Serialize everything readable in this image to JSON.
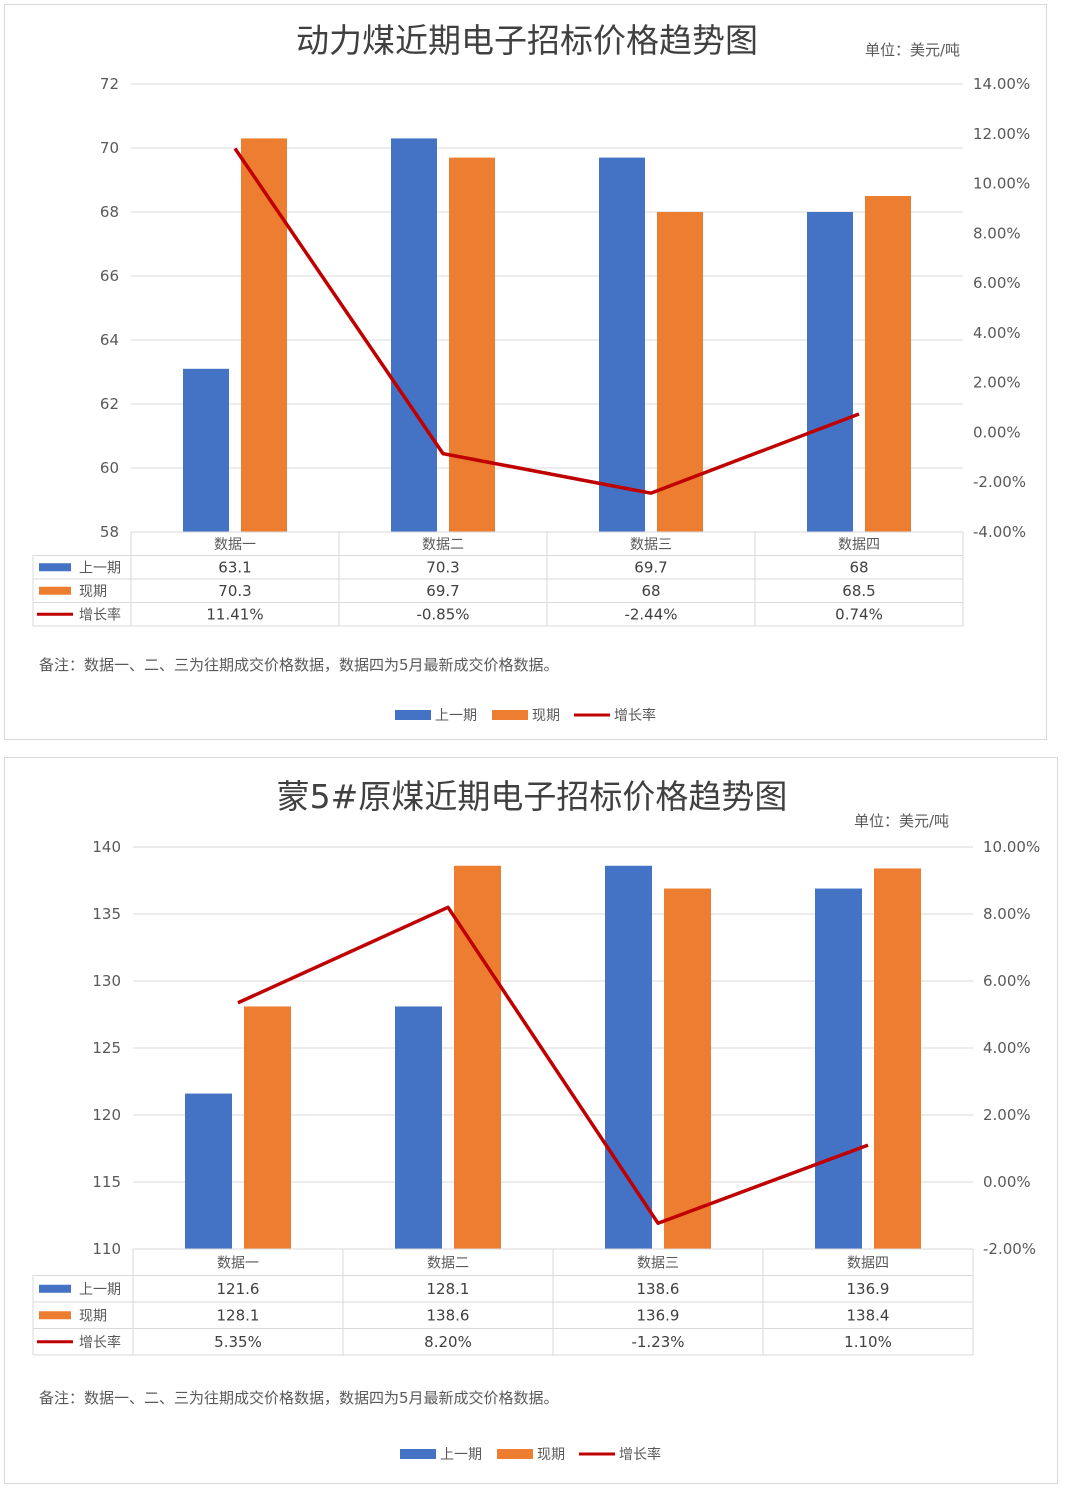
{
  "chart_data": [
    {
      "type": "bar",
      "title": "动力煤近期电子招标价格趋势图",
      "unit": "单位：美元/吨",
      "categories": [
        "数据一",
        "数据二",
        "数据三",
        "数据四"
      ],
      "ylim": [
        58,
        72
      ],
      "yticks": [
        72,
        70,
        68,
        66,
        64,
        62,
        60,
        58
      ],
      "y2lim": [
        -4,
        14
      ],
      "y2ticks": [
        "14.00%",
        "12.00%",
        "10.00%",
        "8.00%",
        "6.00%",
        "4.00%",
        "2.00%",
        "0.00%",
        "-2.00%",
        "-4.00%"
      ],
      "series": [
        {
          "name": "上一期",
          "kind": "bar",
          "color": "#4472C4",
          "values": [
            63.1,
            70.3,
            69.7,
            68
          ],
          "labels": [
            "63.1",
            "70.3",
            "69.7",
            "68"
          ]
        },
        {
          "name": "现期",
          "kind": "bar",
          "color": "#ED7D31",
          "values": [
            70.3,
            69.7,
            68,
            68.5
          ],
          "labels": [
            "70.3",
            "69.7",
            "68",
            "68.5"
          ]
        },
        {
          "name": "增长率",
          "kind": "line",
          "color": "#C00000",
          "values": [
            11.41,
            -0.85,
            -2.44,
            0.74
          ],
          "labels": [
            "11.41%",
            "-0.85%",
            "-2.44%",
            "0.74%"
          ]
        }
      ],
      "note": "备注：数据一、二、三为往期成交价格数据，数据四为5月最新成交价格数据。",
      "grid": true,
      "legend": "bottom"
    },
    {
      "type": "bar",
      "title": "蒙5#原煤近期电子招标价格趋势图",
      "unit": "单位：美元/吨",
      "categories": [
        "数据一",
        "数据二",
        "数据三",
        "数据四"
      ],
      "ylim": [
        110,
        140
      ],
      "yticks": [
        140,
        135,
        130,
        125,
        120,
        115,
        110
      ],
      "y2lim": [
        -2,
        10
      ],
      "y2ticks": [
        "10.00%",
        "8.00%",
        "6.00%",
        "4.00%",
        "2.00%",
        "0.00%",
        "-2.00%"
      ],
      "series": [
        {
          "name": "上一期",
          "kind": "bar",
          "color": "#4472C4",
          "values": [
            121.6,
            128.1,
            138.6,
            136.9
          ],
          "labels": [
            "121.6",
            "128.1",
            "138.6",
            "136.9"
          ]
        },
        {
          "name": "现期",
          "kind": "bar",
          "color": "#ED7D31",
          "values": [
            128.1,
            138.6,
            136.9,
            138.4
          ],
          "labels": [
            "128.1",
            "138.6",
            "136.9",
            "138.4"
          ]
        },
        {
          "name": "增长率",
          "kind": "line",
          "color": "#C00000",
          "values": [
            5.35,
            8.2,
            -1.23,
            1.1
          ],
          "labels": [
            "5.35%",
            "8.20%",
            "-1.23%",
            "1.10%"
          ]
        }
      ],
      "note": "备注：数据一、二、三为往期成交价格数据，数据四为5月最新成交价格数据。",
      "grid": true,
      "legend": "bottom"
    }
  ]
}
